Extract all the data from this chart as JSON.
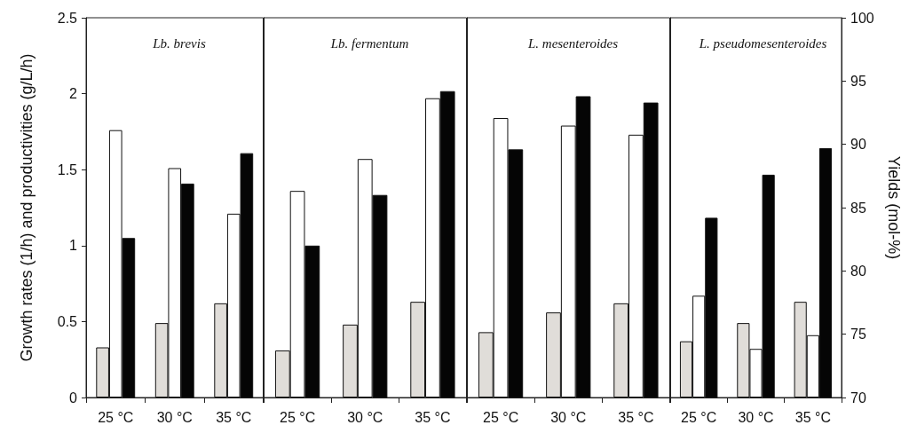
{
  "chart_data": [
    {
      "type": "bar",
      "title": "Lb. brevis",
      "ylabel": "Growth rates (1/h) and productivities (g/L/h)",
      "categories": [
        "25 °C",
        "30 °C",
        "35 °C"
      ],
      "ylim": [
        0,
        2.5
      ],
      "yticks": [
        0,
        0.5,
        1,
        1.5,
        2,
        2.5
      ],
      "y2lim": [
        70,
        100
      ],
      "tick_labels": "xy",
      "grid": false,
      "series": [
        {
          "color": "#e0ddd9",
          "values": [
            0.33,
            0.49,
            0.62
          ]
        },
        {
          "color": "#ffffff",
          "values": [
            1.76,
            1.51,
            1.21
          ]
        },
        {
          "color": "#050505",
          "axis": "y2",
          "values": [
            82.6,
            86.9,
            89.3
          ]
        }
      ]
    },
    {
      "type": "bar",
      "title": "Lb. fermentum",
      "categories": [
        "25 °C",
        "30 °C",
        "35 °C"
      ],
      "ylim": [
        0,
        2.5
      ],
      "y2lim": [
        70,
        100
      ],
      "tick_labels": "x",
      "grid": false,
      "series": [
        {
          "color": "#e0ddd9",
          "values": [
            0.31,
            0.48,
            0.63
          ]
        },
        {
          "color": "#ffffff",
          "values": [
            1.36,
            1.57,
            1.97
          ]
        },
        {
          "color": "#050505",
          "axis": "y2",
          "values": [
            82.0,
            86.0,
            94.2
          ]
        }
      ]
    },
    {
      "type": "bar",
      "title": "L. mesenteroides",
      "categories": [
        "25 °C",
        "30 °C",
        "35 °C"
      ],
      "ylim": [
        0,
        2.5
      ],
      "y2lim": [
        70,
        100
      ],
      "tick_labels": "x",
      "grid": false,
      "series": [
        {
          "color": "#e0ddd9",
          "values": [
            0.43,
            0.56,
            0.62
          ]
        },
        {
          "color": "#ffffff",
          "values": [
            1.84,
            1.79,
            1.73
          ]
        },
        {
          "color": "#050505",
          "axis": "y2",
          "values": [
            89.6,
            93.8,
            93.3
          ]
        }
      ]
    },
    {
      "type": "bar",
      "title": "L. pseudomesenteroides",
      "y2label": "Yields (mol-%)",
      "categories": [
        "25 °C",
        "30 °C",
        "35 °C"
      ],
      "ylim": [
        0,
        2.5
      ],
      "y2lim": [
        70,
        100
      ],
      "y2ticks": [
        70,
        75,
        80,
        85,
        90,
        95,
        100
      ],
      "tick_labels": "xy2",
      "grid": false,
      "series": [
        {
          "color": "#e0ddd9",
          "values": [
            0.37,
            0.49,
            0.63
          ]
        },
        {
          "color": "#ffffff",
          "values": [
            0.67,
            0.32,
            0.41
          ]
        },
        {
          "color": "#050505",
          "axis": "y2",
          "values": [
            84.2,
            87.6,
            89.7
          ]
        }
      ]
    }
  ]
}
